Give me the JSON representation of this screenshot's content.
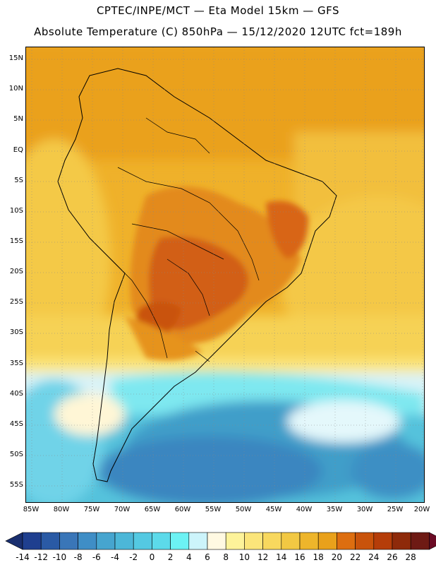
{
  "header": {
    "line1": "CPTEC/INPE/MCT —  Eta Model 15km — GFS",
    "line2": "Absolute Temperature (C) 850hPa — 15/12/2020 12UTC fct=189h"
  },
  "map": {
    "lat_labels": [
      "15N",
      "10N",
      "5N",
      "EQ",
      "5S",
      "10S",
      "15S",
      "20S",
      "25S",
      "30S",
      "35S",
      "40S",
      "45S",
      "50S",
      "55S"
    ],
    "lon_labels": [
      "85W",
      "80W",
      "75W",
      "70W",
      "65W",
      "60W",
      "55W",
      "50W",
      "45W",
      "40W",
      "35W",
      "30W",
      "25W",
      "20W"
    ]
  },
  "colorbar": {
    "labels": [
      "-14",
      "-12",
      "-10",
      "-8",
      "-6",
      "-4",
      "-2",
      "0",
      "2",
      "4",
      "6",
      "8",
      "10",
      "12",
      "14",
      "16",
      "18",
      "20",
      "22",
      "24",
      "26",
      "28"
    ],
    "colors": [
      "#1f3f8f",
      "#2a5aa5",
      "#3a76b8",
      "#3f8ec6",
      "#46a5cf",
      "#4cb7d8",
      "#54c9e2",
      "#5cdaea",
      "#6cf2f4",
      "#ccf4fb",
      "#fff9e2",
      "#fdf39a",
      "#fbe57a",
      "#f8d85e",
      "#f2c843",
      "#eeb52b",
      "#e9a11b",
      "#dd6e10",
      "#c9530b",
      "#b53d09",
      "#8e2a0a",
      "#6e1a14"
    ],
    "low_color": "#1a2f6f",
    "high_color": "#6a0a24"
  }
}
